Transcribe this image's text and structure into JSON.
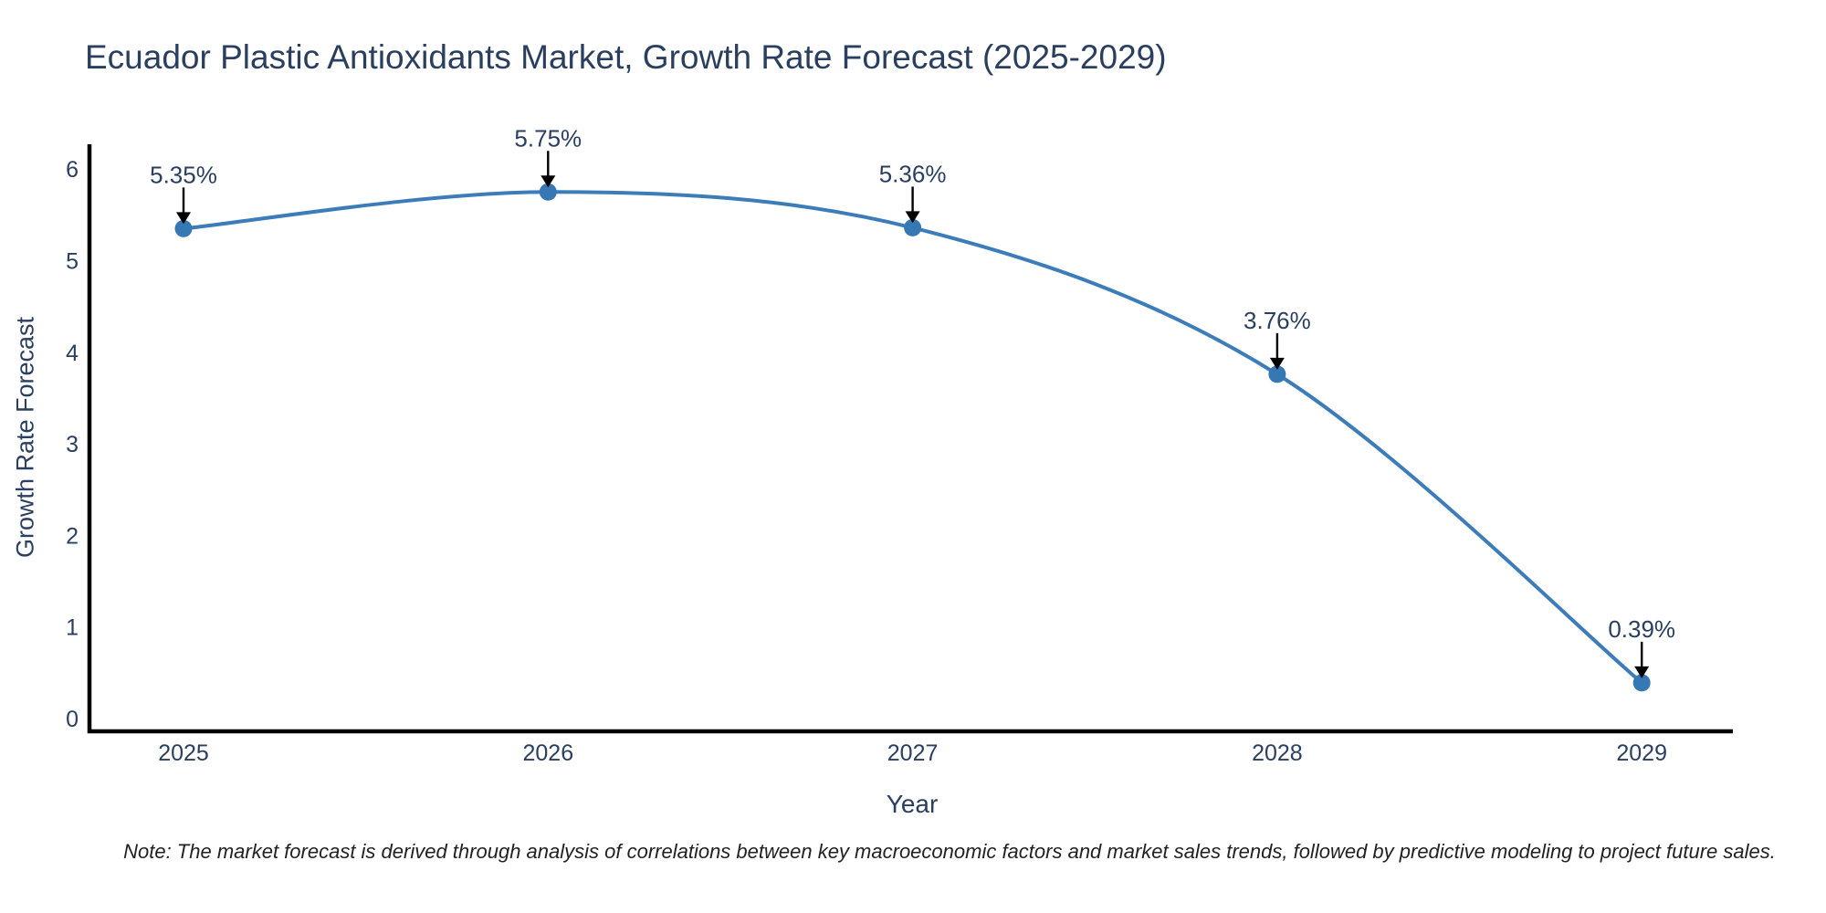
{
  "chart_data": {
    "type": "line",
    "title": "Ecuador Plastic Antioxidants Market, Growth Rate Forecast (2025-2029)",
    "xlabel": "Year",
    "ylabel": "Growth Rate Forecast",
    "categories": [
      "2025",
      "2026",
      "2027",
      "2028",
      "2029"
    ],
    "series": [
      {
        "name": "Growth Rate Forecast",
        "values": [
          5.35,
          5.75,
          5.36,
          3.76,
          0.39
        ],
        "point_labels": [
          "5.35%",
          "5.75%",
          "5.36%",
          "3.76%",
          "0.39%"
        ]
      }
    ],
    "yticks": [
      0,
      1,
      2,
      3,
      4,
      5,
      6
    ],
    "ylim": [
      -0.15,
      6.3
    ],
    "grid": false,
    "legend_position": "none",
    "line_shape": "spline",
    "annotations_have_arrows": true,
    "note": "Note: The market forecast is derived through analysis of correlations between key macroeconomic factors and market sales trends, followed by predictive modeling to project future sales.",
    "colors": {
      "line": "#3c7cb9",
      "marker": "#3678b3",
      "axis_line": "#000000",
      "arrow": "#000000",
      "label_text": "#2a3f5f",
      "title_text": "#2a3f5f",
      "note_text": "#222222",
      "background": "#ffffff"
    }
  }
}
